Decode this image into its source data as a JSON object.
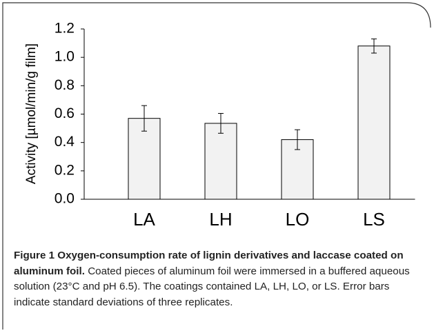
{
  "chart_data": {
    "type": "bar",
    "y_label": "Activity [µmol/min/g film]",
    "categories": [
      "LA",
      "LH",
      "LO",
      "LS"
    ],
    "values": [
      0.57,
      0.535,
      0.42,
      1.08
    ],
    "errors": [
      0.09,
      0.07,
      0.07,
      0.05
    ],
    "color": "#f2f2f2",
    "ylim": [
      0,
      1.2
    ],
    "yticks": [
      {
        "value": 0,
        "label": "0.0"
      },
      0.2,
      0.4,
      0.6,
      0.8,
      {
        "value": 1,
        "label": "1.0"
      },
      1.2
    ],
    "grid": false
  },
  "caption": {
    "title": "Figure 1 Oxygen-consumption rate of lignin derivatives and laccase coated on aluminum foil.",
    "text": "Coated pieces of aluminum foil were immersed in a buffered aqueous solution (23°C and pH 6.5). The coatings contained LA, LH, LO, or LS. Error bars indicate standard deviations of three replicates."
  }
}
